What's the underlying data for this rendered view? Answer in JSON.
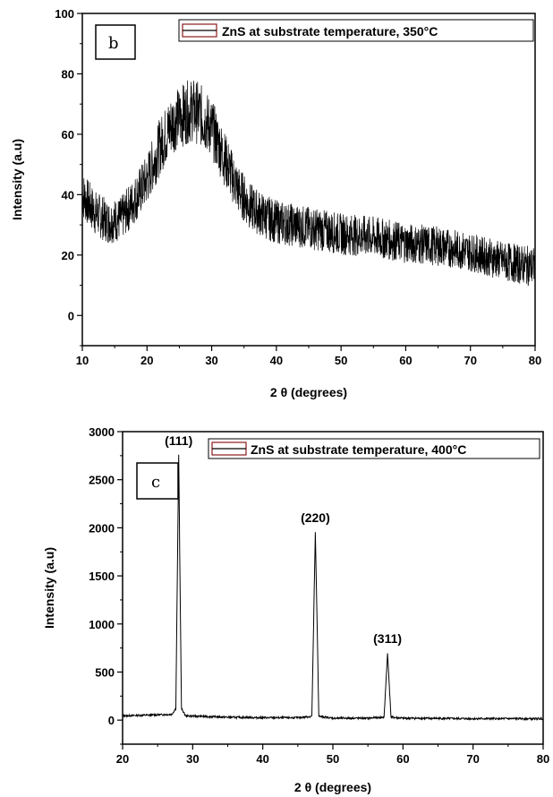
{
  "chart_data": [
    {
      "type": "line",
      "panel_label": "b",
      "xlabel": "2 θ (degrees)",
      "ylabel": "Intensity (a.u)",
      "xlim": [
        10,
        80
      ],
      "ylim": [
        -10,
        100
      ],
      "xticks": [
        10,
        20,
        30,
        40,
        50,
        60,
        70,
        80
      ],
      "yticks": [
        0,
        20,
        40,
        60,
        80,
        100
      ],
      "legend_position": "top-right",
      "series": [
        {
          "name": "ZnS at substrate temperature, 350°C",
          "color": "#000000",
          "x": [
            10,
            12,
            14,
            16,
            18,
            20,
            22,
            24,
            26,
            27,
            28,
            30,
            32,
            34,
            36,
            38,
            40,
            45,
            50,
            55,
            60,
            65,
            70,
            75,
            80
          ],
          "y": [
            40,
            34,
            31,
            32,
            38,
            45,
            56,
            64,
            67,
            68,
            67,
            62,
            52,
            42,
            36,
            33,
            31,
            29,
            27,
            26,
            24,
            23,
            21,
            18,
            16
          ]
        }
      ],
      "noise_amplitude": 9,
      "peak_labels": []
    },
    {
      "type": "line",
      "panel_label": "c",
      "xlabel": "2 θ (degrees)",
      "ylabel": "Intensity (a.u)",
      "xlim": [
        20,
        80
      ],
      "ylim": [
        -250,
        3000
      ],
      "xticks": [
        20,
        30,
        40,
        50,
        60,
        70,
        80
      ],
      "yticks": [
        0,
        500,
        1000,
        1500,
        2000,
        2500,
        3000
      ],
      "legend_position": "top-right",
      "series": [
        {
          "name": "ZnS at substrate temperature, 400°C",
          "color": "#000000",
          "x": [
            20,
            25,
            27,
            27.6,
            28.0,
            28.4,
            29,
            35,
            40,
            45,
            47.0,
            47.5,
            48.0,
            50,
            55,
            57.3,
            57.8,
            58.3,
            60,
            70,
            80
          ],
          "y": [
            45,
            55,
            60,
            120,
            2750,
            120,
            45,
            30,
            25,
            25,
            40,
            1950,
            40,
            20,
            20,
            30,
            690,
            30,
            20,
            15,
            15
          ]
        }
      ],
      "noise_amplitude": 10,
      "peak_labels": [
        {
          "x": 28.0,
          "y": 2750,
          "label": "(111)"
        },
        {
          "x": 47.5,
          "y": 1950,
          "label": "(220)"
        },
        {
          "x": 57.8,
          "y": 690,
          "label": "(311)"
        }
      ]
    }
  ]
}
